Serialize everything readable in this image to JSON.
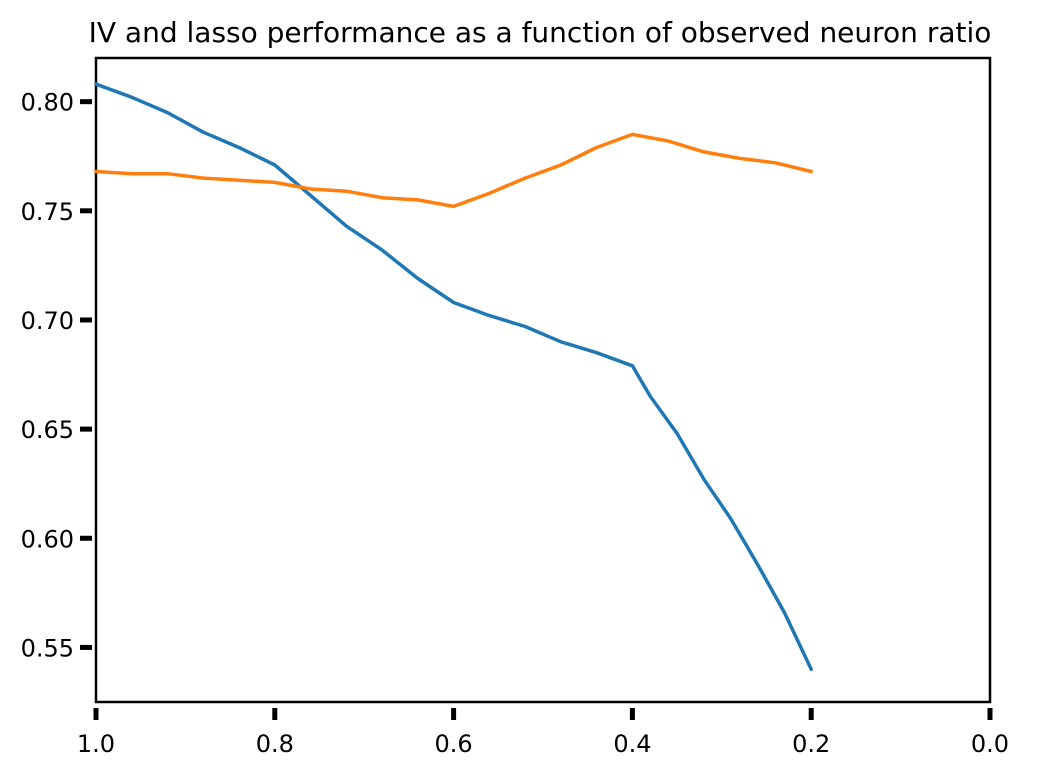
{
  "chart_data": {
    "type": "line",
    "title": "IV and lasso performance as a function of observed neuron ratio",
    "xlabel": "",
    "ylabel": "",
    "xlim": [
      1.0,
      0.0
    ],
    "ylim": [
      0.525,
      0.82
    ],
    "x_ticks": [
      1.0,
      0.8,
      0.6,
      0.4,
      0.2,
      0.0
    ],
    "x_tick_labels": [
      "1.0",
      "0.8",
      "0.6",
      "0.4",
      "0.2",
      "0.0"
    ],
    "y_ticks": [
      0.55,
      0.6,
      0.65,
      0.7,
      0.75,
      0.8
    ],
    "y_tick_labels": [
      "0.55",
      "0.60",
      "0.65",
      "0.70",
      "0.75",
      "0.80"
    ],
    "grid": false,
    "legend": "none",
    "series": [
      {
        "color": "#1f77b4",
        "x": [
          1.0,
          0.96,
          0.92,
          0.88,
          0.84,
          0.8,
          0.76,
          0.72,
          0.68,
          0.64,
          0.6,
          0.56,
          0.52,
          0.48,
          0.44,
          0.4,
          0.38,
          0.35,
          0.32,
          0.29,
          0.26,
          0.23,
          0.2
        ],
        "y": [
          0.808,
          0.802,
          0.795,
          0.786,
          0.779,
          0.771,
          0.757,
          0.743,
          0.732,
          0.719,
          0.708,
          0.702,
          0.697,
          0.69,
          0.685,
          0.679,
          0.665,
          0.648,
          0.627,
          0.609,
          0.588,
          0.566,
          0.54
        ]
      },
      {
        "color": "#ff7f0e",
        "x": [
          1.0,
          0.96,
          0.92,
          0.88,
          0.84,
          0.8,
          0.76,
          0.72,
          0.68,
          0.64,
          0.6,
          0.56,
          0.52,
          0.48,
          0.44,
          0.4,
          0.36,
          0.32,
          0.28,
          0.24,
          0.2
        ],
        "y": [
          0.768,
          0.767,
          0.767,
          0.765,
          0.764,
          0.763,
          0.76,
          0.759,
          0.756,
          0.755,
          0.752,
          0.758,
          0.765,
          0.771,
          0.779,
          0.785,
          0.782,
          0.777,
          0.774,
          0.772,
          0.768
        ]
      }
    ]
  }
}
